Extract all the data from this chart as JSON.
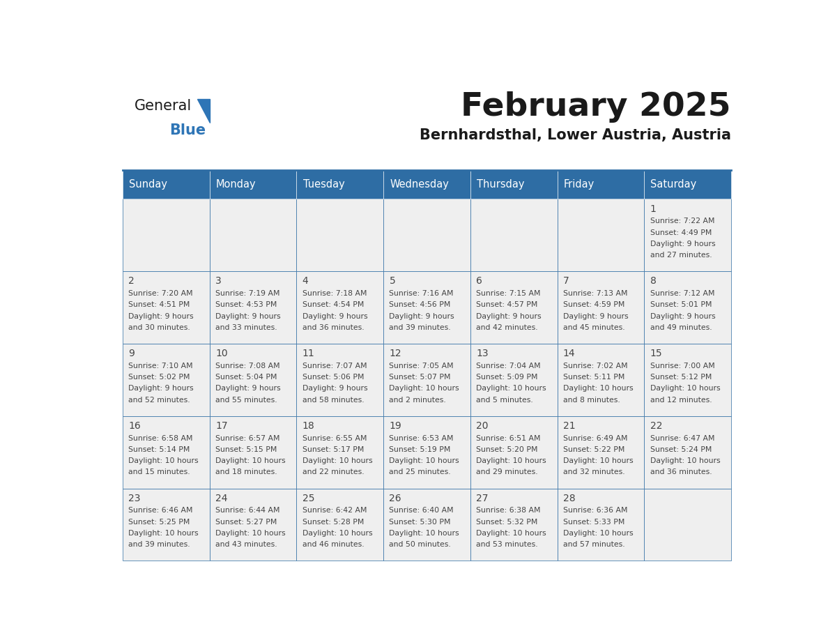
{
  "title": "February 2025",
  "subtitle": "Bernhardsthal, Lower Austria, Austria",
  "header_bg": "#2E6DA4",
  "header_text": "#FFFFFF",
  "cell_bg_light": "#EFEFEF",
  "border_color": "#2E6DA4",
  "day_names": [
    "Sunday",
    "Monday",
    "Tuesday",
    "Wednesday",
    "Thursday",
    "Friday",
    "Saturday"
  ],
  "title_color": "#1a1a1a",
  "subtitle_color": "#1a1a1a",
  "logo_blue_color": "#2E75B6",
  "text_color": "#444444",
  "days_data": [
    {
      "day": 1,
      "col": 6,
      "row": 0,
      "sunrise": "7:22 AM",
      "sunset": "4:49 PM",
      "daylight": "9 hours and 27 minutes."
    },
    {
      "day": 2,
      "col": 0,
      "row": 1,
      "sunrise": "7:20 AM",
      "sunset": "4:51 PM",
      "daylight": "9 hours and 30 minutes."
    },
    {
      "day": 3,
      "col": 1,
      "row": 1,
      "sunrise": "7:19 AM",
      "sunset": "4:53 PM",
      "daylight": "9 hours and 33 minutes."
    },
    {
      "day": 4,
      "col": 2,
      "row": 1,
      "sunrise": "7:18 AM",
      "sunset": "4:54 PM",
      "daylight": "9 hours and 36 minutes."
    },
    {
      "day": 5,
      "col": 3,
      "row": 1,
      "sunrise": "7:16 AM",
      "sunset": "4:56 PM",
      "daylight": "9 hours and 39 minutes."
    },
    {
      "day": 6,
      "col": 4,
      "row": 1,
      "sunrise": "7:15 AM",
      "sunset": "4:57 PM",
      "daylight": "9 hours and 42 minutes."
    },
    {
      "day": 7,
      "col": 5,
      "row": 1,
      "sunrise": "7:13 AM",
      "sunset": "4:59 PM",
      "daylight": "9 hours and 45 minutes."
    },
    {
      "day": 8,
      "col": 6,
      "row": 1,
      "sunrise": "7:12 AM",
      "sunset": "5:01 PM",
      "daylight": "9 hours and 49 minutes."
    },
    {
      "day": 9,
      "col": 0,
      "row": 2,
      "sunrise": "7:10 AM",
      "sunset": "5:02 PM",
      "daylight": "9 hours and 52 minutes."
    },
    {
      "day": 10,
      "col": 1,
      "row": 2,
      "sunrise": "7:08 AM",
      "sunset": "5:04 PM",
      "daylight": "9 hours and 55 minutes."
    },
    {
      "day": 11,
      "col": 2,
      "row": 2,
      "sunrise": "7:07 AM",
      "sunset": "5:06 PM",
      "daylight": "9 hours and 58 minutes."
    },
    {
      "day": 12,
      "col": 3,
      "row": 2,
      "sunrise": "7:05 AM",
      "sunset": "5:07 PM",
      "daylight": "10 hours and 2 minutes."
    },
    {
      "day": 13,
      "col": 4,
      "row": 2,
      "sunrise": "7:04 AM",
      "sunset": "5:09 PM",
      "daylight": "10 hours and 5 minutes."
    },
    {
      "day": 14,
      "col": 5,
      "row": 2,
      "sunrise": "7:02 AM",
      "sunset": "5:11 PM",
      "daylight": "10 hours and 8 minutes."
    },
    {
      "day": 15,
      "col": 6,
      "row": 2,
      "sunrise": "7:00 AM",
      "sunset": "5:12 PM",
      "daylight": "10 hours and 12 minutes."
    },
    {
      "day": 16,
      "col": 0,
      "row": 3,
      "sunrise": "6:58 AM",
      "sunset": "5:14 PM",
      "daylight": "10 hours and 15 minutes."
    },
    {
      "day": 17,
      "col": 1,
      "row": 3,
      "sunrise": "6:57 AM",
      "sunset": "5:15 PM",
      "daylight": "10 hours and 18 minutes."
    },
    {
      "day": 18,
      "col": 2,
      "row": 3,
      "sunrise": "6:55 AM",
      "sunset": "5:17 PM",
      "daylight": "10 hours and 22 minutes."
    },
    {
      "day": 19,
      "col": 3,
      "row": 3,
      "sunrise": "6:53 AM",
      "sunset": "5:19 PM",
      "daylight": "10 hours and 25 minutes."
    },
    {
      "day": 20,
      "col": 4,
      "row": 3,
      "sunrise": "6:51 AM",
      "sunset": "5:20 PM",
      "daylight": "10 hours and 29 minutes."
    },
    {
      "day": 21,
      "col": 5,
      "row": 3,
      "sunrise": "6:49 AM",
      "sunset": "5:22 PM",
      "daylight": "10 hours and 32 minutes."
    },
    {
      "day": 22,
      "col": 6,
      "row": 3,
      "sunrise": "6:47 AM",
      "sunset": "5:24 PM",
      "daylight": "10 hours and 36 minutes."
    },
    {
      "day": 23,
      "col": 0,
      "row": 4,
      "sunrise": "6:46 AM",
      "sunset": "5:25 PM",
      "daylight": "10 hours and 39 minutes."
    },
    {
      "day": 24,
      "col": 1,
      "row": 4,
      "sunrise": "6:44 AM",
      "sunset": "5:27 PM",
      "daylight": "10 hours and 43 minutes."
    },
    {
      "day": 25,
      "col": 2,
      "row": 4,
      "sunrise": "6:42 AM",
      "sunset": "5:28 PM",
      "daylight": "10 hours and 46 minutes."
    },
    {
      "day": 26,
      "col": 3,
      "row": 4,
      "sunrise": "6:40 AM",
      "sunset": "5:30 PM",
      "daylight": "10 hours and 50 minutes."
    },
    {
      "day": 27,
      "col": 4,
      "row": 4,
      "sunrise": "6:38 AM",
      "sunset": "5:32 PM",
      "daylight": "10 hours and 53 minutes."
    },
    {
      "day": 28,
      "col": 5,
      "row": 4,
      "sunrise": "6:36 AM",
      "sunset": "5:33 PM",
      "daylight": "10 hours and 57 minutes."
    }
  ]
}
